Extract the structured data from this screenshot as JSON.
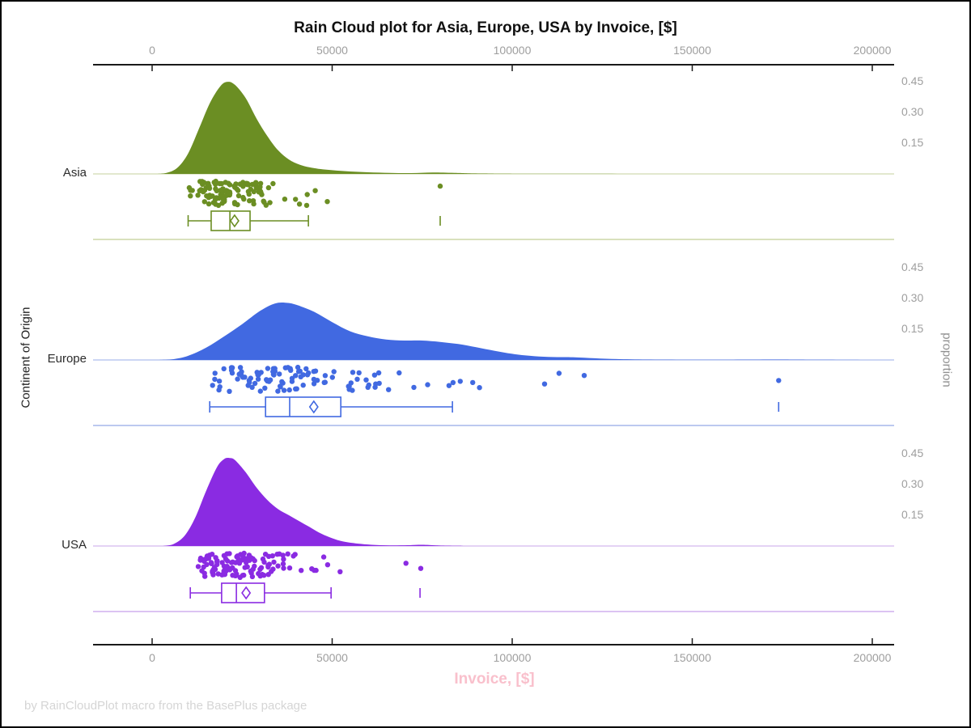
{
  "title": "Rain Cloud plot for Asia, Europe, USA by Invoice, [$]",
  "footer": "by RainCloudPlot macro from the BasePlus package",
  "x_axis": {
    "label": "Invoice, [$]",
    "label_color": "#F9C0CC",
    "ticks": [
      {
        "v": 0,
        "label": "0"
      },
      {
        "v": 50000,
        "label": "50000"
      },
      {
        "v": 100000,
        "label": "100000"
      },
      {
        "v": 150000,
        "label": "150000"
      },
      {
        "v": 200000,
        "label": "200000"
      }
    ],
    "range": [
      0,
      200000
    ]
  },
  "y_axis_left": {
    "label": "Continent of Origin",
    "categories": [
      "Asia",
      "Europe",
      "USA"
    ]
  },
  "y_axis_right": {
    "label": "proportion",
    "ticks": [
      {
        "v": 0.15,
        "label": "0.15"
      },
      {
        "v": 0.3,
        "label": "0.30"
      },
      {
        "v": 0.45,
        "label": "0.45"
      }
    ]
  },
  "colors": {
    "axis_line": "#1a1a1a",
    "tick_text": "#9e9e9e",
    "title_text": "#111111",
    "footer_text": "#d5d5d5"
  },
  "chart_data": {
    "type": "raincloud (half-violin density + jittered strip + box plot per category)",
    "x_variable": "Invoice, [$]",
    "x_range": [
      0,
      200000
    ],
    "proportion_ticks": [
      0.15,
      0.3,
      0.45
    ],
    "groups": [
      {
        "name": "Asia",
        "color": "#6B8E23",
        "light_color": "#d9e1bd",
        "density": [
          [
            1000,
            0
          ],
          [
            4000,
            0.005
          ],
          [
            7000,
            0.03
          ],
          [
            10000,
            0.1
          ],
          [
            13000,
            0.22
          ],
          [
            16000,
            0.345
          ],
          [
            19000,
            0.43
          ],
          [
            21000,
            0.45
          ],
          [
            23000,
            0.435
          ],
          [
            26000,
            0.37
          ],
          [
            29000,
            0.27
          ],
          [
            32000,
            0.185
          ],
          [
            35000,
            0.115
          ],
          [
            38000,
            0.07
          ],
          [
            41000,
            0.045
          ],
          [
            45000,
            0.028
          ],
          [
            50000,
            0.018
          ],
          [
            55000,
            0.012
          ],
          [
            60000,
            0.008
          ],
          [
            66000,
            0.005
          ],
          [
            72000,
            0.004
          ],
          [
            78000,
            0.007
          ],
          [
            84000,
            0.005
          ],
          [
            92000,
            0.002
          ],
          [
            110000,
            0.0005
          ],
          [
            200000,
            0
          ]
        ],
        "box": {
          "whisker_low": 10000,
          "q1": 16400,
          "median": 21600,
          "q3": 27200,
          "whisker_high": 43400,
          "mean": 22900,
          "outliers": [
            80000
          ]
        },
        "rain": {
          "n": 115,
          "log_mean": 10.0,
          "log_sd": 0.33,
          "min": 9500,
          "max": 72000,
          "extra_points": [
            80000
          ],
          "seed": 11
        }
      },
      {
        "name": "Europe",
        "color": "#4169E1",
        "light_color": "#bcc9f0",
        "density": [
          [
            2000,
            0
          ],
          [
            6000,
            0.004
          ],
          [
            10000,
            0.02
          ],
          [
            15000,
            0.06
          ],
          [
            20000,
            0.115
          ],
          [
            25000,
            0.175
          ],
          [
            30000,
            0.24
          ],
          [
            34000,
            0.275
          ],
          [
            37000,
            0.28
          ],
          [
            40000,
            0.27
          ],
          [
            45000,
            0.235
          ],
          [
            50000,
            0.185
          ],
          [
            55000,
            0.14
          ],
          [
            60000,
            0.115
          ],
          [
            65000,
            0.1
          ],
          [
            70000,
            0.095
          ],
          [
            75000,
            0.095
          ],
          [
            80000,
            0.088
          ],
          [
            85000,
            0.078
          ],
          [
            90000,
            0.062
          ],
          [
            95000,
            0.045
          ],
          [
            100000,
            0.03
          ],
          [
            105000,
            0.02
          ],
          [
            110000,
            0.015
          ],
          [
            115000,
            0.014
          ],
          [
            120000,
            0.011
          ],
          [
            126000,
            0.006
          ],
          [
            133000,
            0.003
          ],
          [
            142000,
            0.0015
          ],
          [
            152000,
            0.001
          ],
          [
            165000,
            0.0015
          ],
          [
            174000,
            0.002
          ],
          [
            183000,
            0.001
          ],
          [
            200000,
            0
          ]
        ],
        "box": {
          "whisker_low": 16000,
          "q1": 31500,
          "median": 38200,
          "q3": 52400,
          "whisker_high": 83400,
          "mean": 44900,
          "outliers": [
            174000
          ]
        },
        "rain": {
          "n": 105,
          "log_mean": 10.58,
          "log_sd": 0.38,
          "min": 15000,
          "max": 100000,
          "extra_points": [
            109000,
            113000,
            120000,
            174000
          ],
          "seed": 23
        }
      },
      {
        "name": "USA",
        "color": "#8A2BE2",
        "light_color": "#dcc3f2",
        "density": [
          [
            3000,
            0
          ],
          [
            6000,
            0.01
          ],
          [
            9000,
            0.05
          ],
          [
            12000,
            0.14
          ],
          [
            15000,
            0.27
          ],
          [
            18000,
            0.385
          ],
          [
            20000,
            0.425
          ],
          [
            21500,
            0.43
          ],
          [
            23000,
            0.42
          ],
          [
            26000,
            0.36
          ],
          [
            29000,
            0.285
          ],
          [
            32000,
            0.225
          ],
          [
            35000,
            0.18
          ],
          [
            38000,
            0.15
          ],
          [
            41000,
            0.12
          ],
          [
            44000,
            0.09
          ],
          [
            47000,
            0.06
          ],
          [
            50000,
            0.038
          ],
          [
            53000,
            0.022
          ],
          [
            57000,
            0.012
          ],
          [
            61000,
            0.006
          ],
          [
            66000,
            0.003
          ],
          [
            71000,
            0.004
          ],
          [
            75000,
            0.006
          ],
          [
            79000,
            0.003
          ],
          [
            85000,
            0.001
          ],
          [
            100000,
            0
          ],
          [
            200000,
            0
          ]
        ],
        "box": {
          "whisker_low": 10600,
          "q1": 19300,
          "median": 23400,
          "q3": 31200,
          "whisker_high": 49700,
          "mean": 26100,
          "outliers": [
            74400
          ]
        },
        "rain": {
          "n": 120,
          "log_mean": 10.07,
          "log_sd": 0.35,
          "min": 10000,
          "max": 57000,
          "extra_points": [
            70500,
            74600
          ],
          "seed": 37
        }
      }
    ]
  }
}
